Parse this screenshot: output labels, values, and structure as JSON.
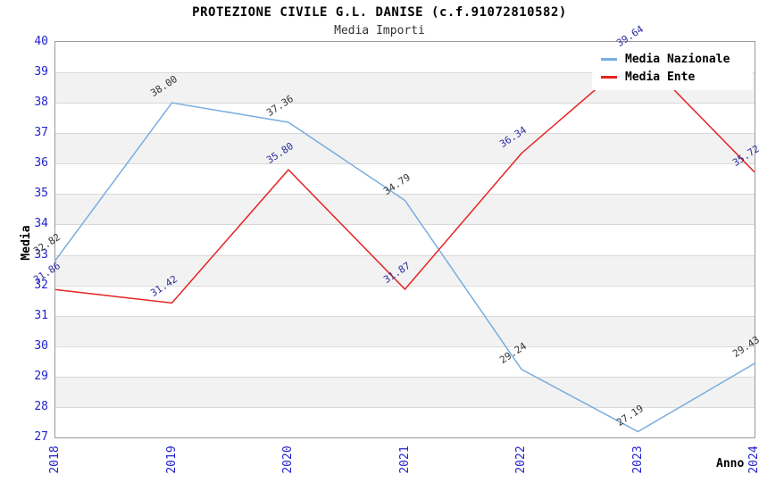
{
  "chart_data": {
    "type": "line",
    "title": "PROTEZIONE CIVILE G.L. DANISE (c.f.91072810582)",
    "subtitle": "Media Importi",
    "xlabel": "Anno",
    "ylabel": "Media",
    "categories": [
      "2018",
      "2019",
      "2020",
      "2021",
      "2022",
      "2023",
      "2024"
    ],
    "y_ticks": [
      27,
      28,
      29,
      30,
      31,
      32,
      33,
      34,
      35,
      36,
      37,
      38,
      39,
      40
    ],
    "ylim": [
      27,
      40
    ],
    "series": [
      {
        "name": "Media Nazionale",
        "color": "#79ADE0",
        "label_color": "#333333",
        "values": [
          32.82,
          38.0,
          37.36,
          34.79,
          29.24,
          27.19,
          29.43
        ]
      },
      {
        "name": "Media Ente",
        "color": "#E62222",
        "label_color": "#2B2B9E",
        "values": [
          31.86,
          31.42,
          35.8,
          31.87,
          36.34,
          39.64,
          35.72
        ]
      }
    ],
    "legend_position": "top-right",
    "grid": "horizontal",
    "band_color": "#f2f2f2",
    "grid_color": "#d9d9d9",
    "axis_tick_color": "#2222cc"
  }
}
